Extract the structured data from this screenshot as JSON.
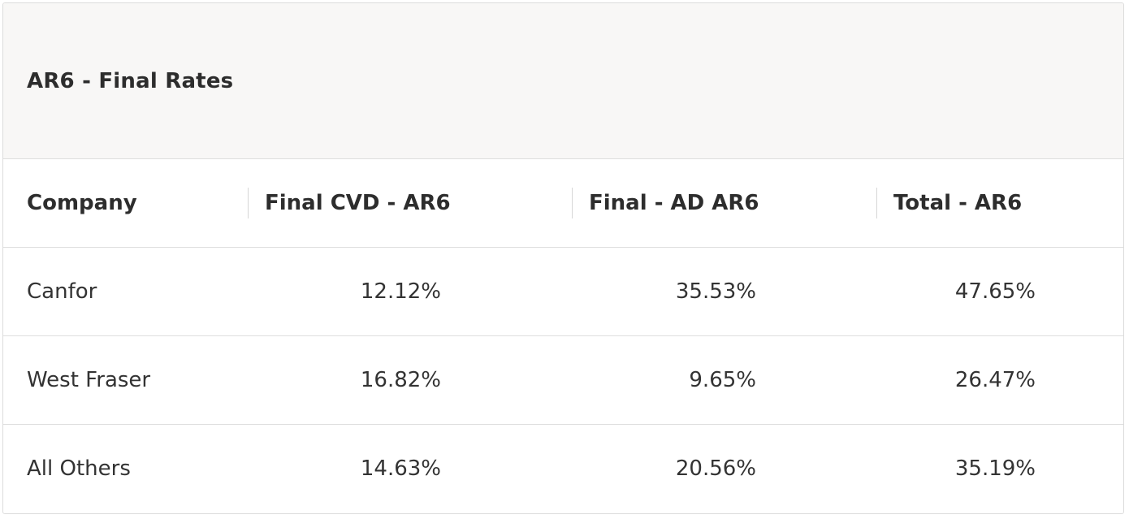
{
  "table": {
    "caption": "AR6 - Final Rates",
    "headers": {
      "company": "Company",
      "cvd": "Final CVD - AR6",
      "ad": "Final - AD AR6",
      "total": "Total - AR6"
    },
    "rows": [
      {
        "company": "Canfor",
        "cvd": "12.12%",
        "ad": "35.53%",
        "total": "47.65%"
      },
      {
        "company": "West Fraser",
        "cvd": "16.82%",
        "ad": "9.65%",
        "total": "26.47%"
      },
      {
        "company": "All Others",
        "cvd": "14.63%",
        "ad": "20.56%",
        "total": "35.19%"
      }
    ]
  }
}
